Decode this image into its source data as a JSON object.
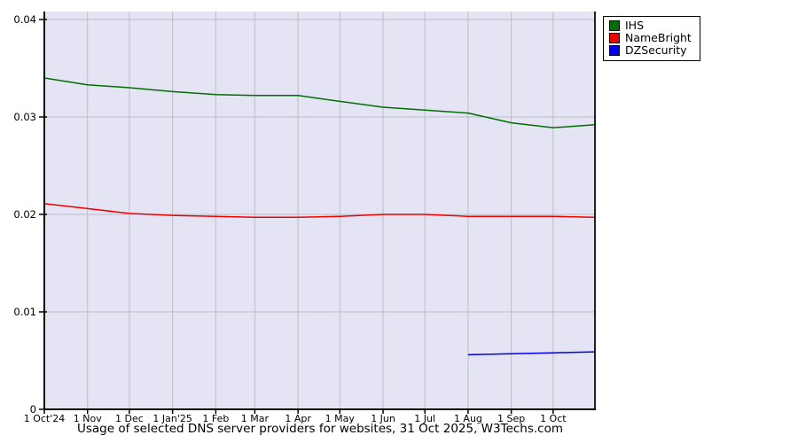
{
  "chart_data": {
    "type": "line",
    "caption": "Usage of selected DNS server providers for websites, 31 Oct 2025, W3Techs.com",
    "ylim": [
      0,
      0.04
    ],
    "grid": true,
    "legend_position": "top-right-outside",
    "colors": {
      "plot_bg": "#e4e4f4",
      "grid": "#bdbdc6",
      "axis": "#000000",
      "text": "#000000"
    },
    "y_ticks": [
      {
        "value": 0.04,
        "label": "0.04"
      },
      {
        "value": 0.03,
        "label": "0.03"
      },
      {
        "value": 0.02,
        "label": "0.02"
      },
      {
        "value": 0.01,
        "label": "0.01"
      },
      {
        "value": 0,
        "label": "0"
      }
    ],
    "x_range_days": [
      0,
      395
    ],
    "x_ticks": [
      {
        "day": 0,
        "label": "1 Oct'24"
      },
      {
        "day": 31,
        "label": "1 Nov"
      },
      {
        "day": 61,
        "label": "1 Dec"
      },
      {
        "day": 92,
        "label": "1 Jan'25"
      },
      {
        "day": 123,
        "label": "1 Feb"
      },
      {
        "day": 151,
        "label": "1 Mar"
      },
      {
        "day": 182,
        "label": "1 Apr"
      },
      {
        "day": 212,
        "label": "1 May"
      },
      {
        "day": 243,
        "label": "1 Jun"
      },
      {
        "day": 273,
        "label": "1 Jul"
      },
      {
        "day": 304,
        "label": "1 Aug"
      },
      {
        "day": 335,
        "label": "1 Sep"
      },
      {
        "day": 365,
        "label": "1 Oct"
      }
    ],
    "series": [
      {
        "name": "IHS",
        "color": "#006e00",
        "x_days": [
          0,
          31,
          61,
          92,
          123,
          151,
          182,
          212,
          243,
          273,
          304,
          335,
          365,
          395
        ],
        "values": [
          0.034,
          0.0333,
          0.033,
          0.0326,
          0.0323,
          0.0322,
          0.0322,
          0.0316,
          0.031,
          0.0307,
          0.0304,
          0.0294,
          0.0289,
          0.0292
        ]
      },
      {
        "name": "NameBright",
        "color": "#ee0000",
        "x_days": [
          0,
          31,
          61,
          92,
          123,
          151,
          182,
          212,
          243,
          273,
          304,
          335,
          365,
          395
        ],
        "values": [
          0.0211,
          0.0206,
          0.0201,
          0.0199,
          0.0198,
          0.0197,
          0.0197,
          0.0198,
          0.02,
          0.02,
          0.0198,
          0.0198,
          0.0198,
          0.0197
        ]
      },
      {
        "name": "DZSecurity",
        "color": "#0000ee",
        "x_days": [
          304,
          335,
          365,
          395
        ],
        "values": [
          0.0056,
          0.0057,
          0.0058,
          0.0059
        ]
      }
    ]
  }
}
